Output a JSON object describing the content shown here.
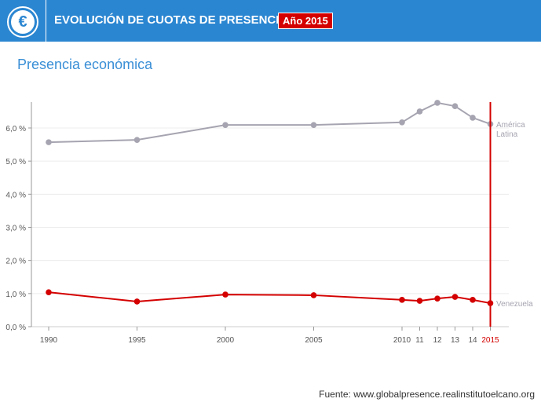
{
  "header": {
    "title": "EVOLUCIÓN DE CUOTAS DE PRESENCIA",
    "badge": "Año 2015",
    "icon": "euro-icon"
  },
  "subtitle": "Presencia económica",
  "source": "Fuente: www.globalpresence.realinstitutoelcano.org",
  "colors": {
    "accent": "#2b86d1",
    "red": "#d40000",
    "gray": "#a6a4b0"
  },
  "chart_data": {
    "type": "line",
    "title": "Presencia económica",
    "x": [
      1990,
      1995,
      2000,
      2005,
      2010,
      2011,
      2012,
      2013,
      2014,
      2015
    ],
    "x_tick_labels": [
      "1990",
      "1995",
      "2000",
      "2005",
      "2010",
      "11",
      "12",
      "13",
      "14",
      "2015"
    ],
    "y_tick_labels": [
      "0,0 %",
      "1,0 %",
      "2,0 %",
      "3,0 %",
      "4,0 %",
      "5,0 %",
      "6,0 %"
    ],
    "ylim": [
      0,
      6.8
    ],
    "grid": true,
    "highlight_year": 2015,
    "series": [
      {
        "name": "América Latina",
        "label_lines": [
          "América",
          "Latina"
        ],
        "color": "#a6a4b0",
        "values": [
          5.57,
          5.64,
          6.09,
          6.09,
          6.17,
          6.5,
          6.76,
          6.66,
          6.31,
          6.12
        ]
      },
      {
        "name": "Venezuela",
        "label_lines": [
          "Venezuela"
        ],
        "color": "#d40000",
        "values": [
          1.04,
          0.76,
          0.97,
          0.95,
          0.81,
          0.78,
          0.85,
          0.9,
          0.81,
          0.71
        ]
      }
    ]
  }
}
